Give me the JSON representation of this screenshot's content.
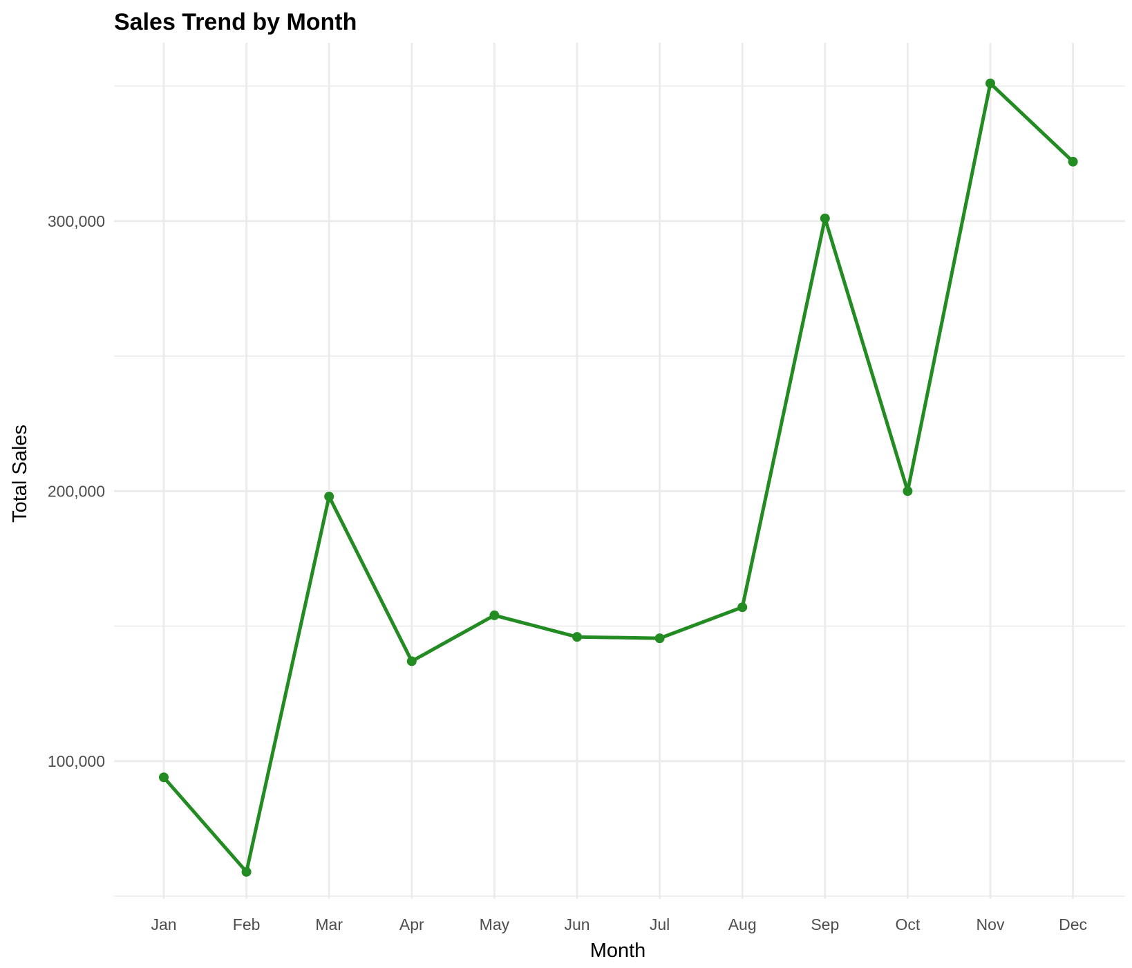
{
  "chart_data": {
    "type": "line",
    "title": "Sales Trend by Month",
    "xlabel": "Month",
    "ylabel": "Total Sales",
    "categories": [
      "Jan",
      "Feb",
      "Mar",
      "Apr",
      "May",
      "Jun",
      "Jul",
      "Aug",
      "Sep",
      "Oct",
      "Nov",
      "Dec"
    ],
    "series": [
      {
        "values": [
          94000,
          59000,
          198000,
          137000,
          154000,
          146000,
          145500,
          157000,
          301000,
          200000,
          351000,
          322000
        ]
      }
    ],
    "y_ticks": [
      100000,
      200000,
      300000
    ],
    "y_tick_labels": [
      "100,000",
      "200,000",
      "300,000"
    ],
    "y_minor_ticks": [
      50000,
      150000,
      250000,
      350000
    ],
    "ylim": [
      49000,
      366000
    ],
    "grid": true,
    "legend": "none",
    "colors": {
      "line": "#228b22",
      "grid": "#ebebeb",
      "tick_text": "#4d4d4d",
      "background": "#ffffff"
    }
  }
}
